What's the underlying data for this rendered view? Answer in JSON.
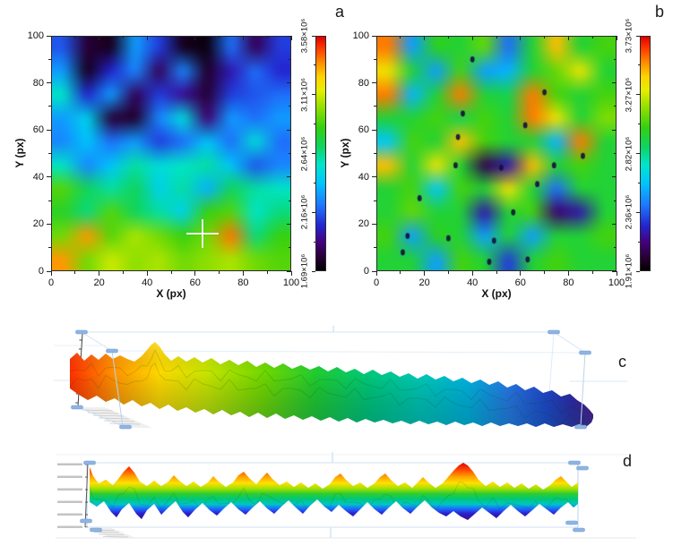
{
  "figure": {
    "background": "#ffffff",
    "panel_letters": {
      "a": "a",
      "b": "b",
      "c": "c",
      "d": "d"
    }
  },
  "colormap": {
    "stops": [
      [
        0,
        "#000000"
      ],
      [
        0.05,
        "#23002e"
      ],
      [
        0.12,
        "#45007d"
      ],
      [
        0.19,
        "#2424cf"
      ],
      [
        0.28,
        "#1e78ff"
      ],
      [
        0.37,
        "#00c3ff"
      ],
      [
        0.45,
        "#00e5cd"
      ],
      [
        0.53,
        "#0fd45f"
      ],
      [
        0.61,
        "#33d011"
      ],
      [
        0.7,
        "#96e000"
      ],
      [
        0.77,
        "#e6ee00"
      ],
      [
        0.83,
        "#ffd300"
      ],
      [
        0.89,
        "#ff8a00"
      ],
      [
        0.95,
        "#ff3a00"
      ],
      [
        1,
        "#de0000"
      ]
    ]
  },
  "chart_data": [
    {
      "id": "a",
      "type": "heatmap",
      "panel_letter": "a",
      "xlabel": "X (px)",
      "ylabel": "Y (px)",
      "xlim": [
        0,
        100
      ],
      "ylim": [
        0,
        100
      ],
      "xticks": [
        0,
        20,
        40,
        60,
        80,
        100
      ],
      "yticks": [
        0,
        20,
        40,
        60,
        80,
        100
      ],
      "minor_tick_step": 10,
      "value_range_e6": [
        1.69,
        3.58
      ],
      "colorbar_ticks": [
        "1.69×10⁶",
        "2.16×10⁶",
        "2.64×10⁶",
        "3.11×10⁶",
        "3.58×10⁶"
      ],
      "cursor": {
        "x": 63,
        "y": 16
      },
      "grid_rows_order": "top_to_bottom",
      "grid_e6": [
        [
          2.15,
          1.8,
          1.75,
          2.3,
          2.1,
          1.75,
          1.72,
          2.2,
          1.85,
          2.1
        ],
        [
          2.3,
          1.75,
          2.05,
          2.25,
          1.85,
          2.25,
          1.78,
          2.0,
          2.2,
          2.05
        ],
        [
          2.55,
          2.05,
          2.3,
          1.85,
          2.1,
          1.95,
          1.8,
          2.1,
          2.15,
          2.2
        ],
        [
          2.3,
          2.45,
          1.8,
          1.78,
          2.25,
          2.5,
          1.9,
          2.3,
          2.2,
          2.3
        ],
        [
          2.25,
          2.4,
          2.2,
          2.3,
          2.1,
          2.2,
          2.4,
          2.2,
          2.5,
          2.2
        ],
        [
          2.55,
          2.25,
          2.4,
          2.6,
          2.5,
          2.55,
          2.6,
          2.4,
          2.15,
          2.25
        ],
        [
          2.9,
          2.7,
          2.6,
          2.7,
          2.45,
          2.6,
          2.35,
          2.7,
          2.6,
          2.55
        ],
        [
          2.8,
          2.65,
          2.9,
          2.7,
          2.6,
          2.45,
          2.85,
          2.9,
          2.55,
          2.65
        ],
        [
          2.95,
          3.35,
          2.9,
          3.05,
          2.95,
          2.85,
          2.95,
          3.4,
          2.65,
          2.85
        ],
        [
          3.35,
          2.95,
          3.1,
          3.0,
          3.05,
          2.95,
          3.0,
          3.05,
          2.95,
          2.9
        ]
      ]
    },
    {
      "id": "b",
      "type": "heatmap",
      "panel_letter": "b",
      "xlabel": "X (px)",
      "ylabel": "Y (px)",
      "xlim": [
        0,
        100
      ],
      "ylim": [
        0,
        100
      ],
      "xticks": [
        0,
        20,
        40,
        60,
        80,
        100
      ],
      "yticks": [
        0,
        20,
        40,
        60,
        80,
        100
      ],
      "minor_tick_step": 10,
      "value_range_e6": [
        1.91,
        3.73
      ],
      "colorbar_ticks": [
        "1.91×10⁶",
        "2.36×10⁶",
        "2.82×10⁶",
        "3.27×10⁶",
        "3.73×10⁶"
      ],
      "grid_rows_order": "top_to_bottom",
      "grid_e6": [
        [
          3.55,
          2.5,
          3.0,
          2.95,
          3.1,
          2.4,
          2.95,
          3.45,
          2.95,
          3.05
        ],
        [
          3.35,
          2.95,
          2.5,
          3.05,
          2.5,
          2.55,
          2.95,
          3.1,
          3.35,
          2.95
        ],
        [
          3.55,
          2.55,
          2.95,
          3.55,
          2.95,
          2.9,
          3.55,
          3.05,
          2.95,
          3.05
        ],
        [
          2.95,
          2.95,
          3.05,
          2.9,
          3.05,
          2.95,
          3.55,
          3.35,
          2.95,
          3.15
        ],
        [
          2.6,
          3.05,
          2.95,
          3.45,
          3.05,
          2.95,
          2.95,
          2.55,
          3.55,
          2.95
        ],
        [
          3.45,
          2.95,
          3.35,
          2.95,
          2.05,
          2.2,
          3.45,
          2.95,
          3.05,
          2.95
        ],
        [
          2.95,
          3.05,
          2.6,
          3.05,
          2.95,
          3.35,
          2.95,
          2.4,
          2.95,
          2.95
        ],
        [
          2.95,
          3.1,
          2.95,
          2.95,
          2.2,
          2.95,
          3.05,
          2.1,
          2.2,
          2.95
        ],
        [
          3.05,
          2.5,
          3.0,
          2.95,
          2.5,
          2.95,
          2.5,
          2.95,
          2.95,
          3.05
        ],
        [
          2.95,
          2.95,
          2.5,
          3.05,
          2.95,
          2.3,
          2.95,
          3.05,
          2.95,
          2.95
        ]
      ],
      "specks": [
        [
          11,
          8
        ],
        [
          13,
          15
        ],
        [
          18,
          31
        ],
        [
          30,
          14
        ],
        [
          33,
          45
        ],
        [
          34,
          57
        ],
        [
          36,
          67
        ],
        [
          40,
          90
        ],
        [
          47,
          4
        ],
        [
          49,
          13
        ],
        [
          52,
          44
        ],
        [
          57,
          25
        ],
        [
          62,
          62
        ],
        [
          67,
          37
        ],
        [
          70,
          76
        ],
        [
          74,
          45
        ],
        [
          86,
          49
        ],
        [
          63,
          5
        ]
      ]
    },
    {
      "id": "c",
      "type": "surface_3d_side_view",
      "panel_letter": "c",
      "gradient_axis": "x",
      "gradient": [
        [
          0,
          "#ff3000"
        ],
        [
          0.09,
          "#ff9800"
        ],
        [
          0.17,
          "#ffd800"
        ],
        [
          0.26,
          "#c8e400"
        ],
        [
          0.37,
          "#70d800"
        ],
        [
          0.47,
          "#20cc30"
        ],
        [
          0.57,
          "#00c87a"
        ],
        [
          0.67,
          "#00c8b8"
        ],
        [
          0.76,
          "#00b4e0"
        ],
        [
          0.84,
          "#2878e8"
        ],
        [
          0.91,
          "#2048d0"
        ],
        [
          0.96,
          "#3028a8"
        ],
        [
          1,
          "#501890"
        ]
      ],
      "top_profile": [
        78,
        401,
        86,
        394,
        94,
        403,
        102,
        396,
        110,
        402,
        118,
        395,
        126,
        401,
        134,
        397,
        142,
        401,
        150,
        404,
        158,
        398,
        164,
        391,
        169,
        385,
        173,
        382,
        178,
        387,
        184,
        396,
        191,
        403,
        199,
        398,
        208,
        404,
        217,
        399,
        226,
        405,
        236,
        400,
        246,
        407,
        256,
        402,
        266,
        408,
        276,
        403,
        286,
        410,
        296,
        405,
        306,
        411,
        316,
        406,
        326,
        412,
        336,
        408,
        346,
        413,
        356,
        409,
        366,
        415,
        376,
        410,
        386,
        416,
        396,
        412,
        406,
        418,
        416,
        413,
        426,
        419,
        436,
        415,
        446,
        421,
        456,
        417,
        466,
        423,
        476,
        418,
        486,
        424,
        496,
        420,
        506,
        426,
        516,
        422,
        526,
        428,
        536,
        424,
        546,
        430,
        556,
        426,
        566,
        433,
        576,
        429,
        586,
        436,
        596,
        432,
        606,
        439,
        616,
        436,
        626,
        443,
        636,
        440,
        644,
        447,
        652,
        452,
        658,
        458,
        662,
        463
      ],
      "bottom_profile": [
        78,
        434,
        88,
        441,
        98,
        447,
        108,
        442,
        118,
        449,
        128,
        445,
        138,
        452,
        148,
        447,
        158,
        454,
        168,
        450,
        178,
        457,
        188,
        452,
        198,
        459,
        208,
        455,
        218,
        461,
        228,
        457,
        238,
        463,
        248,
        458,
        258,
        464,
        268,
        460,
        278,
        466,
        288,
        461,
        298,
        467,
        308,
        462,
        318,
        468,
        328,
        464,
        338,
        469,
        348,
        465,
        358,
        470,
        368,
        466,
        378,
        471,
        388,
        467,
        398,
        472,
        408,
        468,
        418,
        472,
        428,
        469,
        438,
        473,
        448,
        470,
        458,
        474,
        468,
        470,
        478,
        474,
        488,
        471,
        498,
        475,
        508,
        471,
        518,
        475,
        528,
        472,
        538,
        476,
        548,
        472,
        558,
        476,
        568,
        473,
        578,
        476,
        588,
        473,
        598,
        477,
        608,
        473,
        618,
        477,
        628,
        474,
        638,
        477,
        646,
        474,
        654,
        477,
        660,
        472,
        662,
        467
      ]
    },
    {
      "id": "d",
      "type": "surface_3d_side_view",
      "panel_letter": "d",
      "gradient_axis": "y",
      "gradient_y_range": [
        516,
        582
      ],
      "gradient": [
        [
          0,
          "#d80000"
        ],
        [
          0.12,
          "#ff3c00"
        ],
        [
          0.25,
          "#ffa000"
        ],
        [
          0.36,
          "#ffe100"
        ],
        [
          0.45,
          "#a5e000"
        ],
        [
          0.54,
          "#2ecc30"
        ],
        [
          0.63,
          "#00c878"
        ],
        [
          0.72,
          "#00c4c8"
        ],
        [
          0.8,
          "#1e64ff"
        ],
        [
          0.88,
          "#2a1ec8"
        ],
        [
          1,
          "#4b0a78"
        ]
      ],
      "top_profile": [
        100,
        522,
        104,
        532,
        110,
        540,
        118,
        536,
        126,
        542,
        132,
        535,
        138,
        527,
        144,
        521,
        150,
        528,
        156,
        538,
        164,
        543,
        172,
        537,
        180,
        543,
        188,
        538,
        194,
        531,
        200,
        537,
        208,
        543,
        216,
        538,
        224,
        544,
        232,
        539,
        238,
        532,
        244,
        538,
        252,
        544,
        260,
        539,
        266,
        531,
        272,
        527,
        278,
        534,
        286,
        541,
        293,
        533,
        298,
        528,
        304,
        535,
        312,
        542,
        320,
        538,
        328,
        544,
        336,
        539,
        344,
        545,
        352,
        540,
        360,
        546,
        368,
        541,
        374,
        533,
        380,
        529,
        386,
        536,
        394,
        543,
        402,
        539,
        410,
        545,
        418,
        540,
        424,
        533,
        430,
        529,
        436,
        536,
        444,
        543,
        452,
        539,
        460,
        545,
        466,
        539,
        472,
        533,
        478,
        539,
        486,
        545,
        494,
        540,
        500,
        533,
        506,
        526,
        512,
        520,
        517,
        517,
        522,
        520,
        528,
        527,
        534,
        536,
        542,
        543,
        550,
        538,
        558,
        544,
        566,
        539,
        574,
        545,
        582,
        540,
        590,
        546,
        598,
        541,
        606,
        547,
        614,
        542,
        620,
        536,
        626,
        532,
        632,
        538,
        638,
        544,
        645,
        539
      ],
      "bottom_profile": [
        100,
        561,
        108,
        566,
        116,
        560,
        124,
        572,
        130,
        578,
        136,
        569,
        144,
        562,
        152,
        574,
        158,
        580,
        164,
        570,
        172,
        563,
        180,
        575,
        188,
        567,
        196,
        560,
        204,
        572,
        210,
        578,
        218,
        569,
        226,
        562,
        234,
        570,
        242,
        576,
        250,
        568,
        258,
        561,
        266,
        569,
        274,
        575,
        282,
        567,
        290,
        560,
        298,
        568,
        306,
        574,
        314,
        566,
        322,
        559,
        330,
        567,
        338,
        574,
        346,
        565,
        354,
        558,
        362,
        566,
        370,
        572,
        378,
        564,
        386,
        571,
        394,
        577,
        402,
        569,
        410,
        561,
        418,
        569,
        426,
        575,
        434,
        567,
        442,
        560,
        450,
        568,
        458,
        574,
        466,
        566,
        474,
        559,
        482,
        567,
        490,
        573,
        498,
        577,
        506,
        571,
        514,
        577,
        522,
        581,
        530,
        574,
        538,
        567,
        546,
        573,
        554,
        579,
        562,
        571,
        570,
        564,
        578,
        571,
        586,
        577,
        594,
        570,
        602,
        563,
        610,
        569,
        618,
        575,
        626,
        567,
        634,
        561,
        640,
        567,
        645,
        563
      ]
    }
  ]
}
